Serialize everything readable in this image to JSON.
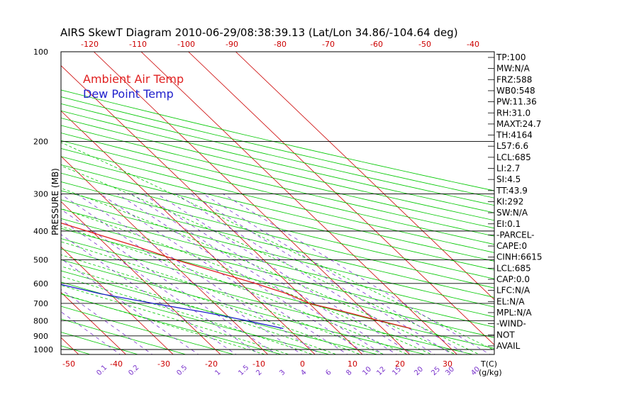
{
  "chart_data": {
    "type": "skew-t log-p",
    "title": "AIRS SkewT Diagram 2010-06-29/08:38:39.13 (Lat/Lon 34.86/-104.64 deg)",
    "ylabel": "PRESSURE (MB)",
    "x_unit_label": "T(C)",
    "mixing_ratio_unit_label": "(g/kg)",
    "ylim": [
      1050,
      100
    ],
    "y_scale": "log",
    "grid": true,
    "legend": [
      {
        "label": "Ambient Air Temp",
        "color": "#e02020"
      },
      {
        "label": "Dew Point Temp",
        "color": "#2020cc"
      }
    ],
    "pressure_ticks": [
      "100",
      "200",
      "300",
      "400",
      "500",
      "600",
      "700",
      "800",
      "900",
      "1000"
    ],
    "top_temp_ticks": [
      "-120",
      "-110",
      "-100",
      "-90",
      "-80",
      "-70",
      "-60",
      "-50",
      "-40"
    ],
    "bottom_temp_ticks": [
      "-50",
      "-40",
      "-30",
      "-20",
      "-10",
      "0",
      "10",
      "20",
      "30"
    ],
    "mixing_ratio_ticks": [
      "0.1",
      "0.2",
      "0.5",
      "1",
      "1.5",
      "2",
      "3",
      "4",
      "6",
      "8",
      "10",
      "12",
      "15",
      "20",
      "25",
      "30",
      "40"
    ],
    "series": [
      {
        "name": "Ambient Air Temp",
        "color": "#e02020",
        "pressure": [
          100,
          125,
          150,
          175,
          200,
          225,
          250,
          275,
          300,
          350,
          400,
          450,
          500,
          550,
          600,
          650,
          700,
          750,
          800,
          850
        ],
        "temperature": [
          -73,
          -70,
          -70,
          -66,
          -59,
          -52,
          -47,
          -42,
          -37,
          -29,
          -21,
          -14,
          -8.5,
          -2.5,
          3,
          7.5,
          10,
          16,
          21,
          26
        ]
      },
      {
        "name": "Dew Point Temp",
        "color": "#2020cc",
        "pressure": [
          100,
          125,
          150,
          175,
          200,
          225,
          250,
          275,
          300,
          350,
          400,
          450,
          500,
          550,
          600,
          650,
          700,
          750,
          800,
          850
        ],
        "temperature": [
          -82,
          -84,
          -87,
          -86,
          -84,
          -81,
          -78,
          -76,
          -73,
          -67,
          -60,
          -56,
          -51,
          -45,
          -39,
          -32,
          -23,
          -14,
          -7,
          -1
        ]
      }
    ],
    "indices": [
      "TP:100",
      "MW:N/A",
      "FRZ:588",
      "WB0:548",
      "PW:11.36",
      "RH:31.0",
      "MAXT:24.7",
      "TH:4164",
      "L57:6.6",
      "LCL:685",
      "LI:2.7",
      "SI:4.5",
      "TT:43.9",
      "KI:292",
      "SW:N/A",
      "EI:0.1",
      "-PARCEL-",
      "CAPE:0",
      "CINH:6615",
      "LCL:685",
      "CAP:0.0",
      "LFC:N/A",
      "EL:N/A",
      "MPL:N/A",
      "-WIND-",
      "NOT",
      "AVAIL"
    ]
  },
  "colors": {
    "temp": "#e02020",
    "dew": "#2020cc",
    "isotherm": "#cc0000",
    "dry_adiabat": "#00c800",
    "moist_adiabat": "#00c800",
    "mixing_ratio": "#7a33cc",
    "axis_text": "#cc0000",
    "frame": "#000000"
  }
}
